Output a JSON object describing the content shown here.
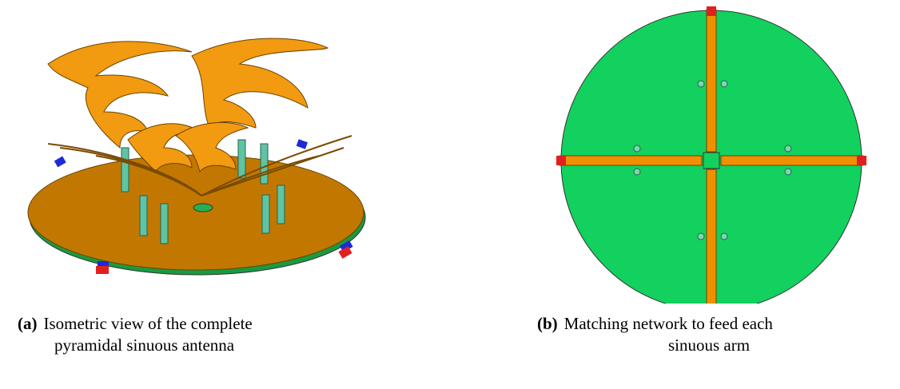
{
  "figures": [
    {
      "label": "(a)",
      "caption_lines": [
        "Isometric view of the complete",
        "pyramidal sinuous antenna"
      ]
    },
    {
      "label": "(b)",
      "caption_lines": [
        "Matching network to feed each",
        "sinuous arm"
      ]
    }
  ]
}
